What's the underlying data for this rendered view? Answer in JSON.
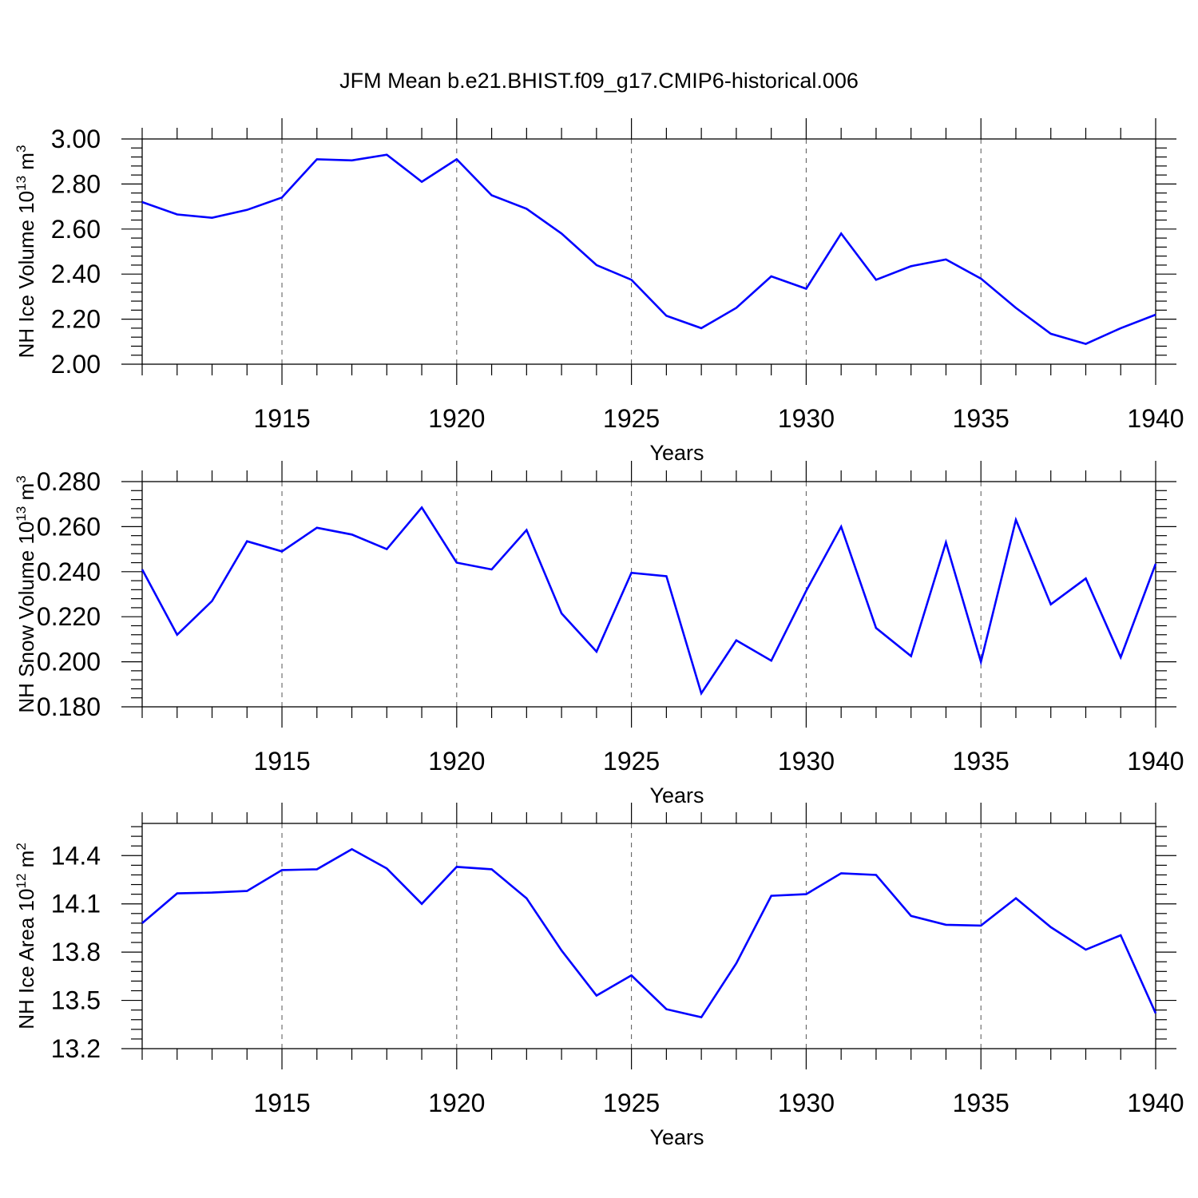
{
  "title": "JFM Mean b.e21.BHIST.f09_g17.CMIP6-historical.006",
  "colors": {
    "series": "#0000ff",
    "axis": "#000000",
    "grid": "#555555"
  },
  "chart_data": [
    {
      "type": "line",
      "title": "JFM Mean b.e21.BHIST.f09_g17.CMIP6-historical.006",
      "xlabel": "Years",
      "ylabel": {
        "text": "NH Ice Volume 10",
        "exp": "13",
        "unit": " m",
        "unit_exp": "3"
      },
      "xlim": [
        1911,
        1940
      ],
      "ylim": [
        2.0,
        3.0
      ],
      "xticks": [
        "1915",
        "1920",
        "1925",
        "1930",
        "1935",
        "1940"
      ],
      "yticks": [
        "2.00",
        "2.20",
        "2.40",
        "2.60",
        "2.80",
        "3.00"
      ],
      "grid": "vertical dashed at major x ticks",
      "series": [
        {
          "name": "NH Ice Volume",
          "x": [
            1911,
            1912,
            1913,
            1914,
            1915,
            1916,
            1917,
            1918,
            1919,
            1920,
            1921,
            1922,
            1923,
            1924,
            1925,
            1926,
            1927,
            1928,
            1929,
            1930,
            1931,
            1932,
            1933,
            1934,
            1935,
            1936,
            1937,
            1938,
            1939,
            1940
          ],
          "values": [
            2.72,
            2.665,
            2.65,
            2.685,
            2.74,
            2.91,
            2.905,
            2.93,
            2.81,
            2.91,
            2.75,
            2.69,
            2.58,
            2.44,
            2.375,
            2.215,
            2.16,
            2.25,
            2.39,
            2.335,
            2.58,
            2.375,
            2.435,
            2.465,
            2.38,
            2.25,
            2.135,
            2.09,
            2.16,
            2.22
          ]
        }
      ]
    },
    {
      "type": "line",
      "xlabel": "Years",
      "ylabel": {
        "text": "NH Snow Volume 10",
        "exp": "13",
        "unit": " m",
        "unit_exp": "3"
      },
      "xlim": [
        1911,
        1940
      ],
      "ylim": [
        0.18,
        0.28
      ],
      "xticks": [
        "1915",
        "1920",
        "1925",
        "1930",
        "1935",
        "1940"
      ],
      "yticks": [
        "0.180",
        "0.200",
        "0.220",
        "0.240",
        "0.260",
        "0.280"
      ],
      "grid": "vertical dashed at major x ticks",
      "series": [
        {
          "name": "NH Snow Volume",
          "x": [
            1911,
            1912,
            1913,
            1914,
            1915,
            1916,
            1917,
            1918,
            1919,
            1920,
            1921,
            1922,
            1923,
            1924,
            1925,
            1926,
            1927,
            1928,
            1929,
            1930,
            1931,
            1932,
            1933,
            1934,
            1935,
            1936,
            1937,
            1938,
            1939,
            1940
          ],
          "values": [
            0.241,
            0.212,
            0.227,
            0.2535,
            0.249,
            0.2595,
            0.2565,
            0.25,
            0.2685,
            0.244,
            0.241,
            0.2585,
            0.2215,
            0.2045,
            0.2395,
            0.238,
            0.186,
            0.2095,
            0.2005,
            0.2315,
            0.26,
            0.215,
            0.2025,
            0.253,
            0.2,
            0.263,
            0.2255,
            0.237,
            0.202,
            0.2435
          ]
        }
      ]
    },
    {
      "type": "line",
      "xlabel": "Years",
      "ylabel": {
        "text": "NH Ice Area 10",
        "exp": "12",
        "unit": " m",
        "unit_exp": "2"
      },
      "xlim": [
        1911,
        1940
      ],
      "ylim": [
        13.2,
        14.6
      ],
      "xticks": [
        "1915",
        "1920",
        "1925",
        "1930",
        "1935",
        "1940"
      ],
      "yticks": [
        "13.2",
        "13.5",
        "13.8",
        "14.1",
        "14.4"
      ],
      "grid": "vertical dashed at major x ticks",
      "series": [
        {
          "name": "NH Ice Area",
          "x": [
            1911,
            1912,
            1913,
            1914,
            1915,
            1916,
            1917,
            1918,
            1919,
            1920,
            1921,
            1922,
            1923,
            1924,
            1925,
            1926,
            1927,
            1928,
            1929,
            1930,
            1931,
            1932,
            1933,
            1934,
            1935,
            1936,
            1937,
            1938,
            1939,
            1940
          ],
          "values": [
            13.98,
            14.165,
            14.17,
            14.18,
            14.31,
            14.315,
            14.44,
            14.32,
            14.1,
            14.33,
            14.315,
            14.135,
            13.81,
            13.53,
            13.655,
            13.445,
            13.395,
            13.73,
            14.15,
            14.16,
            14.29,
            14.28,
            14.025,
            13.97,
            13.965,
            14.135,
            13.955,
            13.815,
            13.905,
            13.42
          ]
        }
      ]
    }
  ]
}
